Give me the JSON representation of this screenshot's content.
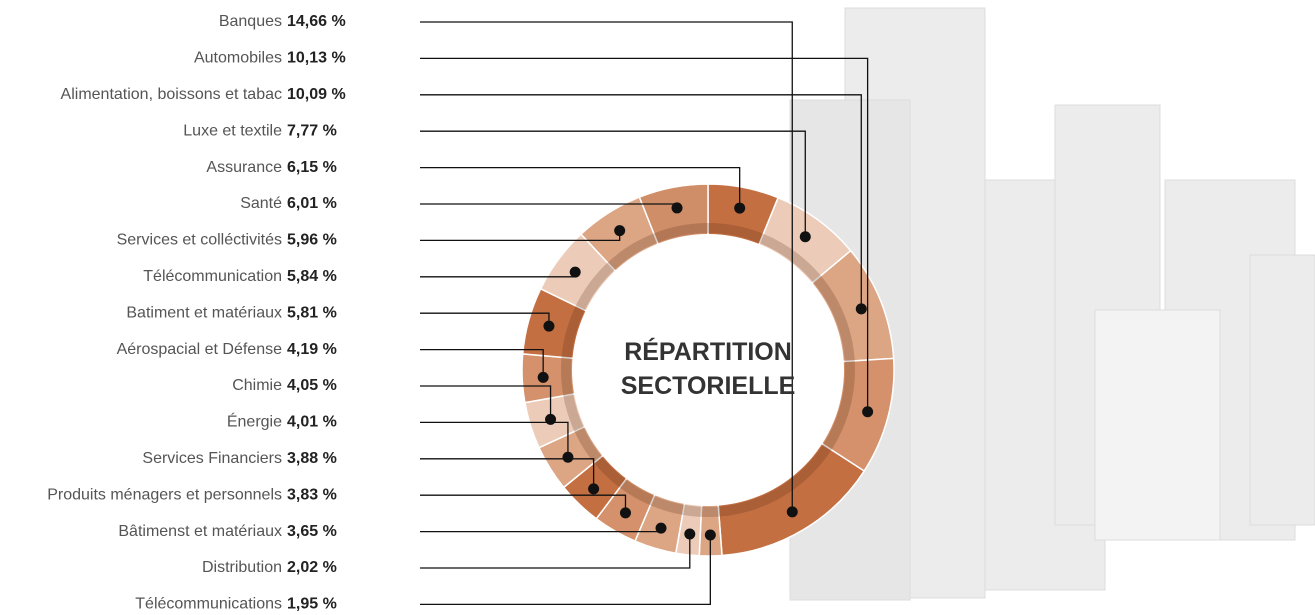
{
  "chart_data": {
    "type": "donut",
    "title": "RÉPARTITION SECTORIELLE",
    "categories": [
      "Banques",
      "Automobiles",
      "Alimentation, boissons et tabac",
      "Luxe et textile",
      "Assurance",
      "Santé",
      "Services et colléctivités",
      "Télécommunication",
      "Batiment et matériaux",
      "Aérospacial et Défense",
      "Chimie",
      "Énergie",
      "Services Financiers",
      "Produits ménagers et personnels",
      "Bâtimenst et matériaux",
      "Distribution",
      "Télécommunications"
    ],
    "values": [
      14.66,
      10.13,
      10.09,
      7.77,
      6.15,
      6.01,
      5.96,
      5.84,
      5.81,
      4.19,
      4.05,
      4.01,
      3.88,
      3.83,
      3.65,
      2.02,
      1.95
    ],
    "value_labels": [
      "14,66 %",
      "10,13 %",
      "10,09 %",
      "7,77 %",
      "6,15 %",
      "6,01 %",
      "5,96 %",
      "5,84 %",
      "5,81 %",
      "4,19 %",
      "4,05 %",
      "4,01 %",
      "3,88 %",
      "3,83 %",
      "3,65 %",
      "2,02 %",
      "1,95 %"
    ],
    "colors": [
      "#c46f42",
      "#d4916b",
      "#dca584",
      "#ecccb8",
      "#c46f42",
      "#d08e68",
      "#dca584",
      "#ecccb8",
      "#c46f42",
      "#d4916b",
      "#ecccb8",
      "#dca584",
      "#c46f42",
      "#d4916b",
      "#dca584",
      "#ecccb8",
      "#dca584"
    ]
  }
}
